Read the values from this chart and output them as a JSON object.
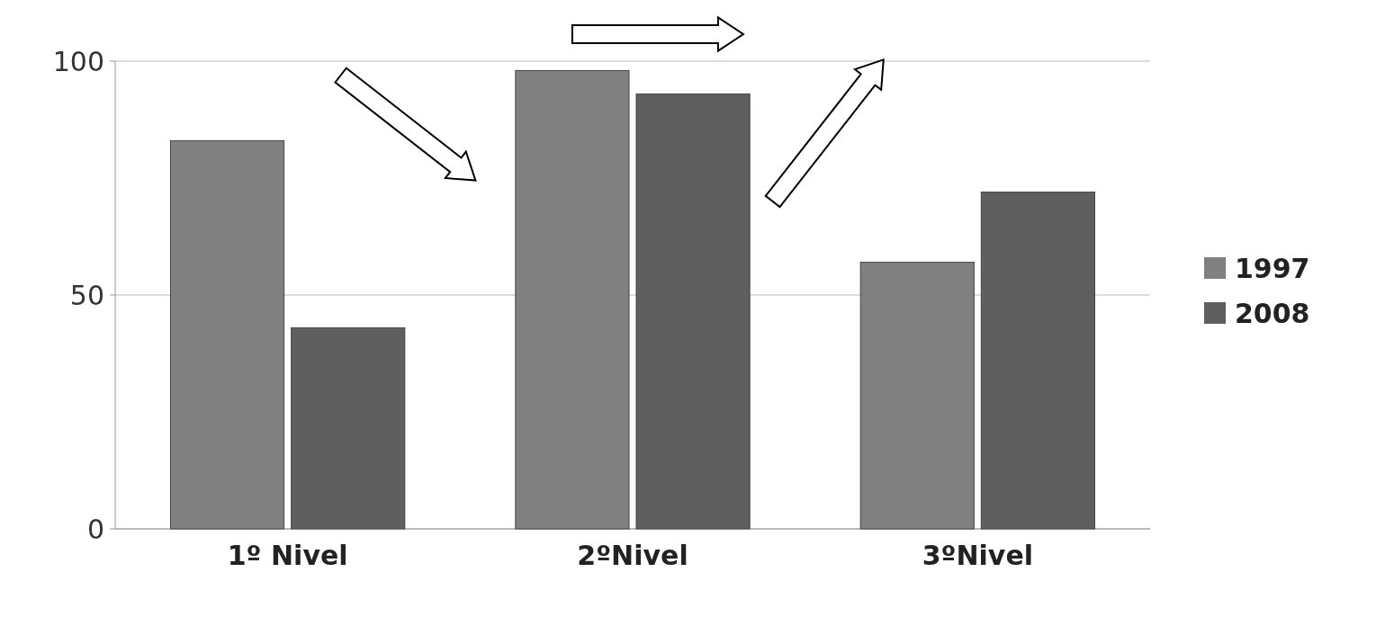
{
  "chart_data": {
    "type": "bar",
    "categories": [
      "1º Nivel",
      "2ºNivel",
      "3ºNivel"
    ],
    "series": [
      {
        "name": "1997",
        "color": "#808080",
        "values": [
          83,
          98,
          57
        ]
      },
      {
        "name": "2008",
        "color": "#5f5f5f",
        "values": [
          43,
          93,
          72
        ]
      }
    ],
    "ylim": [
      0,
      100
    ],
    "yticks": [
      0,
      50,
      100
    ],
    "grid": "y",
    "legend": "right"
  }
}
